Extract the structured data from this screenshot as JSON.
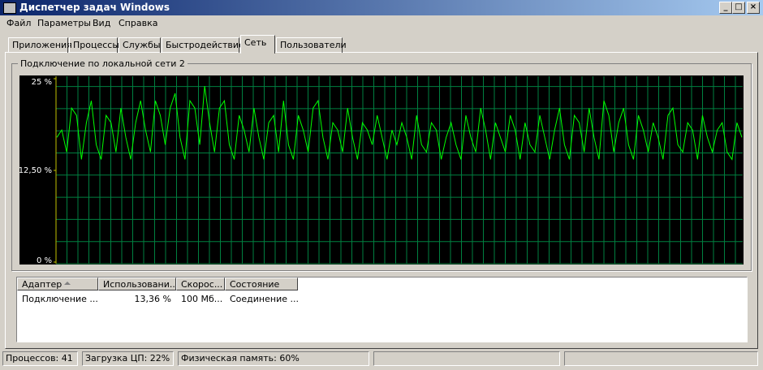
{
  "window": {
    "title": "Диспетчер задач Windows"
  },
  "menu": [
    "Файл",
    "Параметры",
    "Вид",
    "Справка"
  ],
  "tabs": [
    {
      "label": "Приложения",
      "selected": false
    },
    {
      "label": "Процессы",
      "selected": false
    },
    {
      "label": "Службы",
      "selected": false
    },
    {
      "label": "Быстродействие",
      "selected": false
    },
    {
      "label": "Сеть",
      "selected": true
    },
    {
      "label": "Пользователи",
      "selected": false
    }
  ],
  "group": {
    "title": "Подключение по локальной сети 2"
  },
  "chart_data": {
    "type": "line",
    "ylim": [
      0,
      25
    ],
    "yticks": [
      {
        "value": 0,
        "label": "0 %"
      },
      {
        "value": 12.5,
        "label": "12,50 %"
      },
      {
        "value": 25,
        "label": "25 %"
      }
    ],
    "color": "#00ff00",
    "values": [
      17,
      18,
      15,
      21,
      20,
      14,
      19,
      22,
      16,
      14,
      20,
      19,
      15,
      21,
      17,
      14,
      19,
      22,
      18,
      15,
      22,
      20,
      16,
      21,
      23,
      17,
      14,
      22,
      21,
      16,
      24,
      19,
      15,
      21,
      22,
      16,
      14,
      20,
      18,
      15,
      21,
      17,
      14,
      19,
      20,
      15,
      22,
      16,
      14,
      20,
      18,
      15,
      21,
      22,
      17,
      14,
      19,
      18,
      15,
      21,
      17,
      14,
      19,
      18,
      16,
      20,
      17,
      14,
      18,
      16,
      19,
      17,
      14,
      20,
      16,
      15,
      19,
      18,
      14,
      17,
      19,
      16,
      14,
      20,
      17,
      15,
      21,
      18,
      14,
      19,
      17,
      15,
      20,
      18,
      14,
      19,
      16,
      15,
      20,
      17,
      14,
      18,
      21,
      16,
      14,
      20,
      19,
      15,
      21,
      17,
      14,
      22,
      20,
      15,
      19,
      21,
      16,
      14,
      20,
      18,
      15,
      19,
      17,
      14,
      20,
      21,
      16,
      15,
      19,
      18,
      14,
      20,
      17,
      15,
      18,
      19,
      15,
      14,
      19,
      17
    ]
  },
  "table": {
    "columns": [
      "Адаптер",
      "Использовани...",
      "Скорос...",
      "Состояние"
    ],
    "rows": [
      [
        "Подключение ...",
        "13,36 %",
        "100 Мб...",
        "Соединение ..."
      ]
    ]
  },
  "status": [
    "Процессов: 41",
    "Загрузка ЦП: 22%",
    "Физическая память: 60%"
  ]
}
